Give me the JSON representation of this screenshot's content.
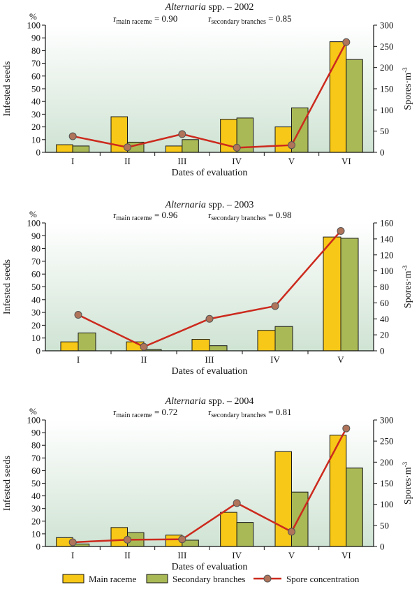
{
  "colors": {
    "main_raceme": "#f7c817",
    "secondary_branches": "#a9b956",
    "spores_line": "#cc2a1e",
    "spores_marker": "#b0745a",
    "plot_bg_top": "#ffffff",
    "plot_bg_bottom": "#cfe3d3"
  },
  "legend": {
    "placement": "bottom",
    "items": [
      "Main raceme",
      "Secondary branches",
      "Spore concentration"
    ]
  },
  "chart_data": [
    {
      "type": "bar",
      "title_italic": "Alternaria",
      "title_rest": " spp. – 2002",
      "r_main_prefix": "r",
      "r_main_sub": "main raceme",
      "r_main_value": " = 0.90",
      "r_sec_prefix": "r",
      "r_sec_sub": "secondary branches",
      "r_sec_value": " = 0.85",
      "left_unit": "%",
      "ylabel": "Infested seeds",
      "y2label": "Spores·m",
      "y2label_sup": "-3",
      "xlabel": "Dates of evaluation",
      "categories": [
        "I",
        "II",
        "III",
        "IV",
        "V",
        "VI"
      ],
      "series": [
        {
          "name": "Main raceme",
          "axis": "left",
          "kind": "bar",
          "values": [
            6,
            28,
            5,
            26,
            20,
            87
          ]
        },
        {
          "name": "Secondary branches",
          "axis": "left",
          "kind": "bar",
          "values": [
            5,
            8,
            10,
            27,
            35,
            73
          ]
        },
        {
          "name": "Spore concentration",
          "axis": "right",
          "kind": "line",
          "values": [
            38,
            12,
            43,
            11,
            17,
            260
          ]
        }
      ],
      "ylim": [
        0,
        100
      ],
      "yticks": [
        0,
        10,
        20,
        30,
        40,
        50,
        60,
        70,
        80,
        90,
        100
      ],
      "y2lim": [
        0,
        300
      ],
      "y2ticks": [
        0,
        50,
        100,
        150,
        200,
        250,
        300
      ]
    },
    {
      "type": "bar",
      "title_italic": "Alternaria",
      "title_rest": " spp. – 2003",
      "r_main_prefix": "r",
      "r_main_sub": "main raceme",
      "r_main_value": " = 0.96",
      "r_sec_prefix": "r",
      "r_sec_sub": "secondary branches",
      "r_sec_value": " = 0.98",
      "left_unit": "%",
      "ylabel": "Infested seeds",
      "y2label": "Spores·m",
      "y2label_sup": "-3",
      "xlabel": "Dates of evaluation",
      "categories": [
        "I",
        "II",
        "III",
        "IV",
        "V"
      ],
      "series": [
        {
          "name": "Main raceme",
          "axis": "left",
          "kind": "bar",
          "values": [
            7,
            7,
            9,
            16,
            89
          ]
        },
        {
          "name": "Secondary branches",
          "axis": "left",
          "kind": "bar",
          "values": [
            14,
            1,
            4,
            19,
            88
          ]
        },
        {
          "name": "Spore concentration",
          "axis": "right",
          "kind": "line",
          "values": [
            45,
            5,
            40,
            56,
            150
          ]
        }
      ],
      "ylim": [
        0,
        100
      ],
      "yticks": [
        0,
        10,
        20,
        30,
        40,
        50,
        60,
        70,
        80,
        90,
        100
      ],
      "y2lim": [
        0,
        160
      ],
      "y2ticks": [
        0,
        20,
        40,
        60,
        80,
        100,
        120,
        140,
        160
      ]
    },
    {
      "type": "bar",
      "title_italic": "Alternaria",
      "title_rest": " spp. – 2004",
      "r_main_prefix": "r",
      "r_main_sub": "main raceme",
      "r_main_value": " = 0.72",
      "r_sec_prefix": "r",
      "r_sec_sub": "secondary branches",
      "r_sec_value": " = 0.81",
      "left_unit": "%",
      "ylabel": "Infested seeds",
      "y2label": "Spores·m",
      "y2label_sup": "-3",
      "xlabel": "Dates of evaluation",
      "categories": [
        "I",
        "II",
        "III",
        "IV",
        "V",
        "VI"
      ],
      "series": [
        {
          "name": "Main raceme",
          "axis": "left",
          "kind": "bar",
          "values": [
            7,
            15,
            9,
            27,
            75,
            88
          ]
        },
        {
          "name": "Secondary branches",
          "axis": "left",
          "kind": "bar",
          "values": [
            2,
            11,
            5,
            19,
            43,
            62
          ]
        },
        {
          "name": "Spore concentration",
          "axis": "right",
          "kind": "line",
          "values": [
            10,
            16,
            17,
            103,
            35,
            280
          ]
        }
      ],
      "ylim": [
        0,
        100
      ],
      "yticks": [
        0,
        10,
        20,
        30,
        40,
        50,
        60,
        70,
        80,
        90,
        100
      ],
      "y2lim": [
        0,
        300
      ],
      "y2ticks": [
        0,
        50,
        100,
        150,
        200,
        250,
        300
      ]
    }
  ]
}
